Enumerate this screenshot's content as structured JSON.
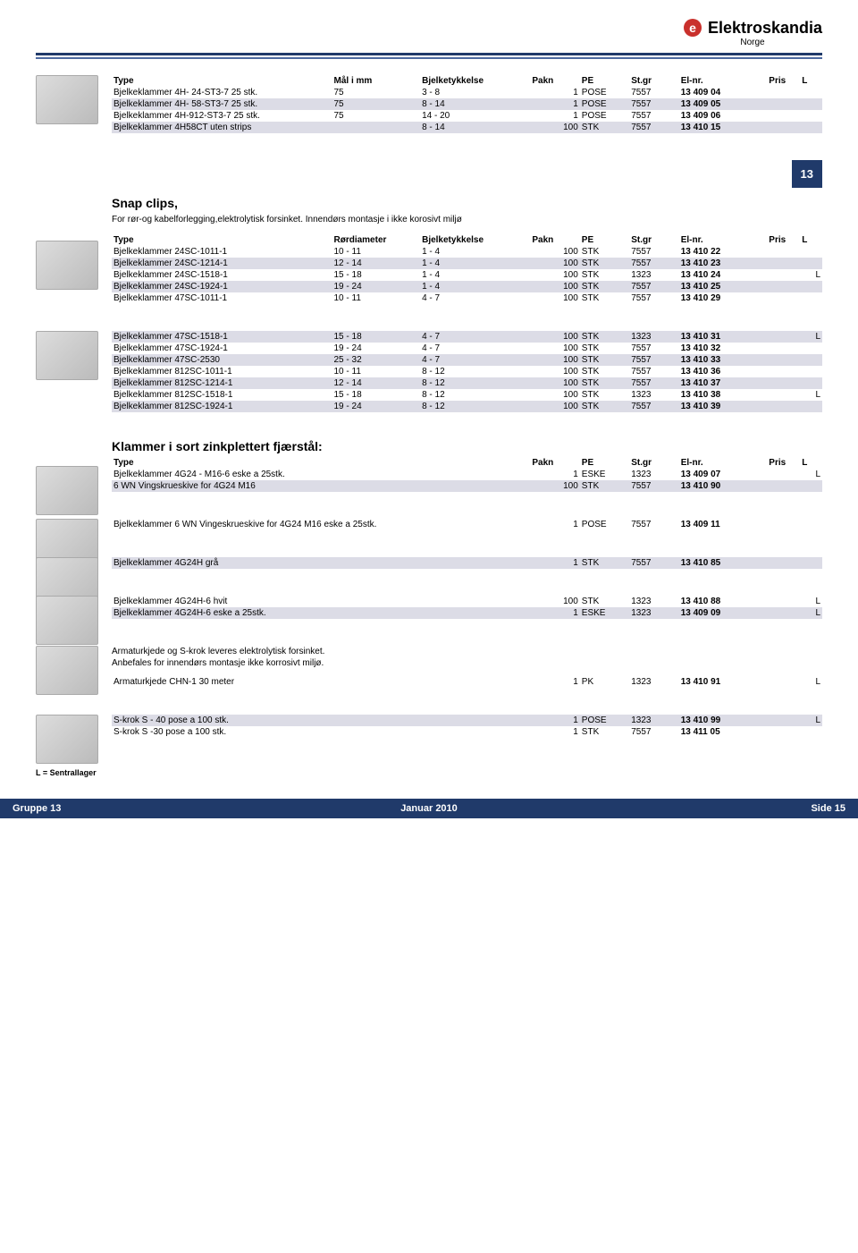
{
  "brand": {
    "name": "Elektroskandia",
    "sub": "Norge",
    "icon_color": "#c9302c"
  },
  "tab_number": "13",
  "tables": {
    "t1": {
      "headers": [
        "Type",
        "Mål i mm",
        "Bjelketykkelse",
        "Pakn",
        "PE",
        "St.gr",
        "El-nr.",
        "Pris",
        "L"
      ],
      "rows": [
        [
          "Bjelkeklammer 4H- 24-ST3-7 25 stk.",
          "75",
          "3 - 8",
          "1",
          "POSE",
          "7557",
          "13 409 04",
          "",
          ""
        ],
        [
          "Bjelkeklammer 4H- 58-ST3-7 25 stk.",
          "75",
          "8 - 14",
          "1",
          "POSE",
          "7557",
          "13 409 05",
          "",
          ""
        ],
        [
          "Bjelkeklammer 4H-912-ST3-7 25 stk.",
          "75",
          "14 - 20",
          "1",
          "POSE",
          "7557",
          "13 409 06",
          "",
          ""
        ],
        [
          "Bjelkeklammer 4H58CT uten strips",
          "",
          "8 - 14",
          "100",
          "STK",
          "7557",
          "13 410 15",
          "",
          ""
        ]
      ],
      "alt": [
        false,
        true,
        false,
        true
      ]
    },
    "t2": {
      "title": "Snap clips,",
      "desc": "For rør-og kabelforlegging,elektrolytisk forsinket. Innendørs montasje i ikke korosivt miljø",
      "headers": [
        "Type",
        "Rørdiameter",
        "Bjelketykkelse",
        "Pakn",
        "PE",
        "St.gr",
        "El-nr.",
        "Pris",
        "L"
      ],
      "rows": [
        [
          "Bjelkeklammer 24SC-1011-1",
          "10 - 11",
          "1 - 4",
          "100",
          "STK",
          "7557",
          "13 410 22",
          "",
          ""
        ],
        [
          "Bjelkeklammer 24SC-1214-1",
          "12 - 14",
          "1 - 4",
          "100",
          "STK",
          "7557",
          "13 410 23",
          "",
          ""
        ],
        [
          "Bjelkeklammer 24SC-1518-1",
          "15 - 18",
          "1 - 4",
          "100",
          "STK",
          "1323",
          "13 410 24",
          "",
          "L"
        ],
        [
          "Bjelkeklammer 24SC-1924-1",
          "19 - 24",
          "1 - 4",
          "100",
          "STK",
          "7557",
          "13 410 25",
          "",
          ""
        ],
        [
          "Bjelkeklammer 47SC-1011-1",
          "10 - 11",
          "4 - 7",
          "100",
          "STK",
          "7557",
          "13 410 29",
          "",
          ""
        ]
      ],
      "alt": [
        false,
        true,
        false,
        true,
        false
      ]
    },
    "t3": {
      "rows": [
        [
          "Bjelkeklammer 47SC-1518-1",
          "15 - 18",
          "4 - 7",
          "100",
          "STK",
          "1323",
          "13 410 31",
          "",
          "L"
        ],
        [
          "Bjelkeklammer 47SC-1924-1",
          "19 - 24",
          "4 - 7",
          "100",
          "STK",
          "7557",
          "13 410 32",
          "",
          ""
        ],
        [
          "Bjelkeklammer 47SC-2530",
          "25 - 32",
          "4 - 7",
          "100",
          "STK",
          "7557",
          "13 410 33",
          "",
          ""
        ],
        [
          "Bjelkeklammer 812SC-1011-1",
          "10 - 11",
          "8 - 12",
          "100",
          "STK",
          "7557",
          "13 410 36",
          "",
          ""
        ],
        [
          "Bjelkeklammer 812SC-1214-1",
          "12 - 14",
          "8 - 12",
          "100",
          "STK",
          "7557",
          "13 410 37",
          "",
          ""
        ],
        [
          "Bjelkeklammer 812SC-1518-1",
          "15 - 18",
          "8 - 12",
          "100",
          "STK",
          "1323",
          "13 410 38",
          "",
          "L"
        ],
        [
          "Bjelkeklammer 812SC-1924-1",
          "19 - 24",
          "8 - 12",
          "100",
          "STK",
          "7557",
          "13 410 39",
          "",
          ""
        ]
      ],
      "alt": [
        true,
        false,
        true,
        false,
        true,
        false,
        true
      ]
    },
    "t4": {
      "title": "Klammer i sort zinkplettert fjærstål:",
      "headers": [
        "Type",
        "",
        "",
        "Pakn",
        "PE",
        "St.gr",
        "El-nr.",
        "Pris",
        "L"
      ],
      "rows": [
        [
          "Bjelkeklammer 4G24 - M16-6 eske a 25stk.",
          "",
          "",
          "1",
          "ESKE",
          "1323",
          "13 409 07",
          "",
          "L"
        ],
        [
          "6 WN Vingskrueskive for 4G24 M16",
          "",
          "",
          "100",
          "STK",
          "7557",
          "13 410 90",
          "",
          ""
        ]
      ],
      "alt": [
        false,
        true
      ]
    },
    "t5": {
      "rows": [
        [
          "Bjelkeklammer 6 WN Vingeskrueskive for 4G24 M16 eske a 25stk.",
          "",
          "",
          "1",
          "POSE",
          "7557",
          "13 409 11",
          "",
          ""
        ]
      ],
      "alt": [
        false
      ]
    },
    "t6": {
      "rows": [
        [
          "Bjelkeklammer 4G24H grå",
          "",
          "",
          "1",
          "STK",
          "7557",
          "13 410 85",
          "",
          ""
        ]
      ],
      "alt": [
        true
      ]
    },
    "t7": {
      "rows": [
        [
          "Bjelkeklammer 4G24H-6 hvit",
          "",
          "",
          "100",
          "STK",
          "1323",
          "13 410 88",
          "",
          "L"
        ],
        [
          "Bjelkeklammer 4G24H-6 eske a 25stk.",
          "",
          "",
          "1",
          "ESKE",
          "1323",
          "13 409 09",
          "",
          "L"
        ]
      ],
      "alt": [
        false,
        true
      ]
    },
    "t8": {
      "note": "Armaturkjede og S-krok leveres elektrolytisk forsinket.\nAnbefales for innendørs montasje ikke korrosivt miljø.",
      "rows": [
        [
          "Armaturkjede CHN-1 30 meter",
          "",
          "",
          "1",
          "PK",
          "1323",
          "13 410 91",
          "",
          "L"
        ]
      ],
      "alt": [
        false
      ]
    },
    "t9": {
      "rows": [
        [
          "S-krok S - 40 pose a 100 stk.",
          "",
          "",
          "1",
          "POSE",
          "1323",
          "13 410 99",
          "",
          "L"
        ],
        [
          "S-krok S -30 pose a 100 stk.",
          "",
          "",
          "1",
          "STK",
          "7557",
          "13 411 05",
          "",
          ""
        ]
      ],
      "alt": [
        true,
        false
      ]
    }
  },
  "footer": {
    "left": "Gruppe 13",
    "center": "Januar 2010",
    "right": "Side   15",
    "note": "L = Sentrallager"
  }
}
